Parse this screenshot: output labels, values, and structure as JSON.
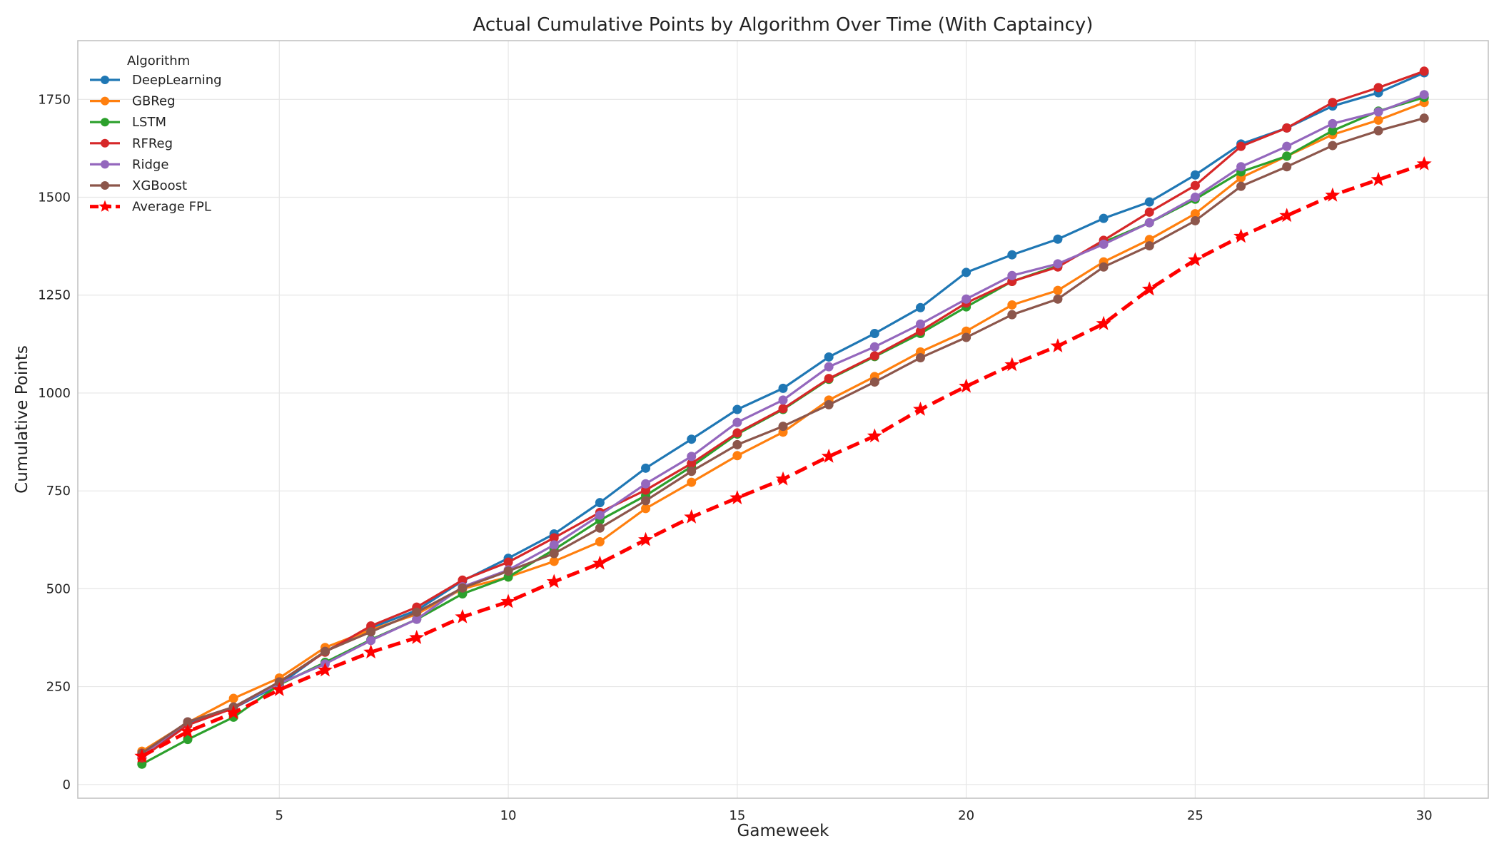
{
  "chart_data": {
    "type": "line",
    "title": "Actual Cumulative Points by Algorithm Over Time (With Captaincy)",
    "xlabel": "Gameweek",
    "ylabel": "Cumulative Points",
    "xlim": [
      0.6,
      31.4
    ],
    "ylim": [
      -35,
      1900
    ],
    "xticks": [
      5,
      10,
      15,
      20,
      25,
      30
    ],
    "yticks": [
      0,
      250,
      500,
      750,
      1000,
      1250,
      1500,
      1750
    ],
    "grid": true,
    "legend": {
      "title": "Algorithm",
      "placement": "top-left"
    },
    "x": [
      2,
      3,
      4,
      5,
      6,
      7,
      8,
      9,
      10,
      11,
      12,
      13,
      14,
      15,
      16,
      17,
      18,
      19,
      20,
      21,
      22,
      23,
      24,
      25,
      26,
      27,
      28,
      29,
      30
    ],
    "series": [
      {
        "name": "DeepLearning",
        "color": "#1f77b4",
        "style": "solid",
        "marker": "circle",
        "values": [
          78,
          155,
          195,
          255,
          340,
          400,
          445,
          520,
          578,
          640,
          720,
          808,
          882,
          958,
          1012,
          1092,
          1152,
          1218,
          1308,
          1353,
          1393,
          1446,
          1488,
          1557,
          1636,
          1677,
          1733,
          1767,
          1818
        ]
      },
      {
        "name": "GBReg",
        "color": "#ff7f0e",
        "style": "solid",
        "marker": "circle",
        "values": [
          85,
          158,
          220,
          272,
          350,
          395,
          435,
          500,
          530,
          570,
          620,
          705,
          772,
          840,
          900,
          982,
          1042,
          1105,
          1158,
          1225,
          1262,
          1335,
          1392,
          1458,
          1550,
          1605,
          1660,
          1697,
          1742
        ]
      },
      {
        "name": "LSTM",
        "color": "#2ca02c",
        "style": "solid",
        "marker": "circle",
        "values": [
          52,
          115,
          172,
          255,
          312,
          370,
          422,
          487,
          530,
          600,
          675,
          738,
          812,
          895,
          958,
          1035,
          1093,
          1152,
          1220,
          1285,
          1325,
          1385,
          1435,
          1495,
          1565,
          1605,
          1670,
          1720,
          1755
        ]
      },
      {
        "name": "RFReg",
        "color": "#d62728",
        "style": "solid",
        "marker": "circle",
        "values": [
          68,
          152,
          195,
          262,
          338,
          405,
          453,
          522,
          568,
          630,
          695,
          752,
          820,
          898,
          960,
          1037,
          1095,
          1158,
          1230,
          1285,
          1322,
          1390,
          1462,
          1530,
          1630,
          1677,
          1742,
          1780,
          1822
        ]
      },
      {
        "name": "Ridge",
        "color": "#9467bd",
        "style": "solid",
        "marker": "circle",
        "values": [
          75,
          160,
          198,
          258,
          308,
          368,
          422,
          505,
          548,
          612,
          688,
          768,
          838,
          925,
          982,
          1067,
          1118,
          1176,
          1240,
          1300,
          1330,
          1380,
          1435,
          1500,
          1578,
          1630,
          1688,
          1718,
          1762
        ]
      },
      {
        "name": "XGBoost",
        "color": "#8c564b",
        "style": "solid",
        "marker": "circle",
        "values": [
          80,
          160,
          198,
          262,
          340,
          390,
          440,
          502,
          545,
          590,
          655,
          725,
          800,
          868,
          915,
          970,
          1028,
          1090,
          1142,
          1200,
          1240,
          1322,
          1376,
          1440,
          1528,
          1578,
          1632,
          1670,
          1702
        ]
      },
      {
        "name": "Average FPL",
        "color": "#ff0000",
        "style": "dashed",
        "marker": "star",
        "values": [
          72,
          135,
          183,
          242,
          292,
          338,
          375,
          428,
          467,
          518,
          565,
          625,
          683,
          732,
          780,
          838,
          890,
          958,
          1017,
          1072,
          1120,
          1177,
          1265,
          1340,
          1400,
          1453,
          1505,
          1545,
          1585
        ]
      }
    ]
  }
}
